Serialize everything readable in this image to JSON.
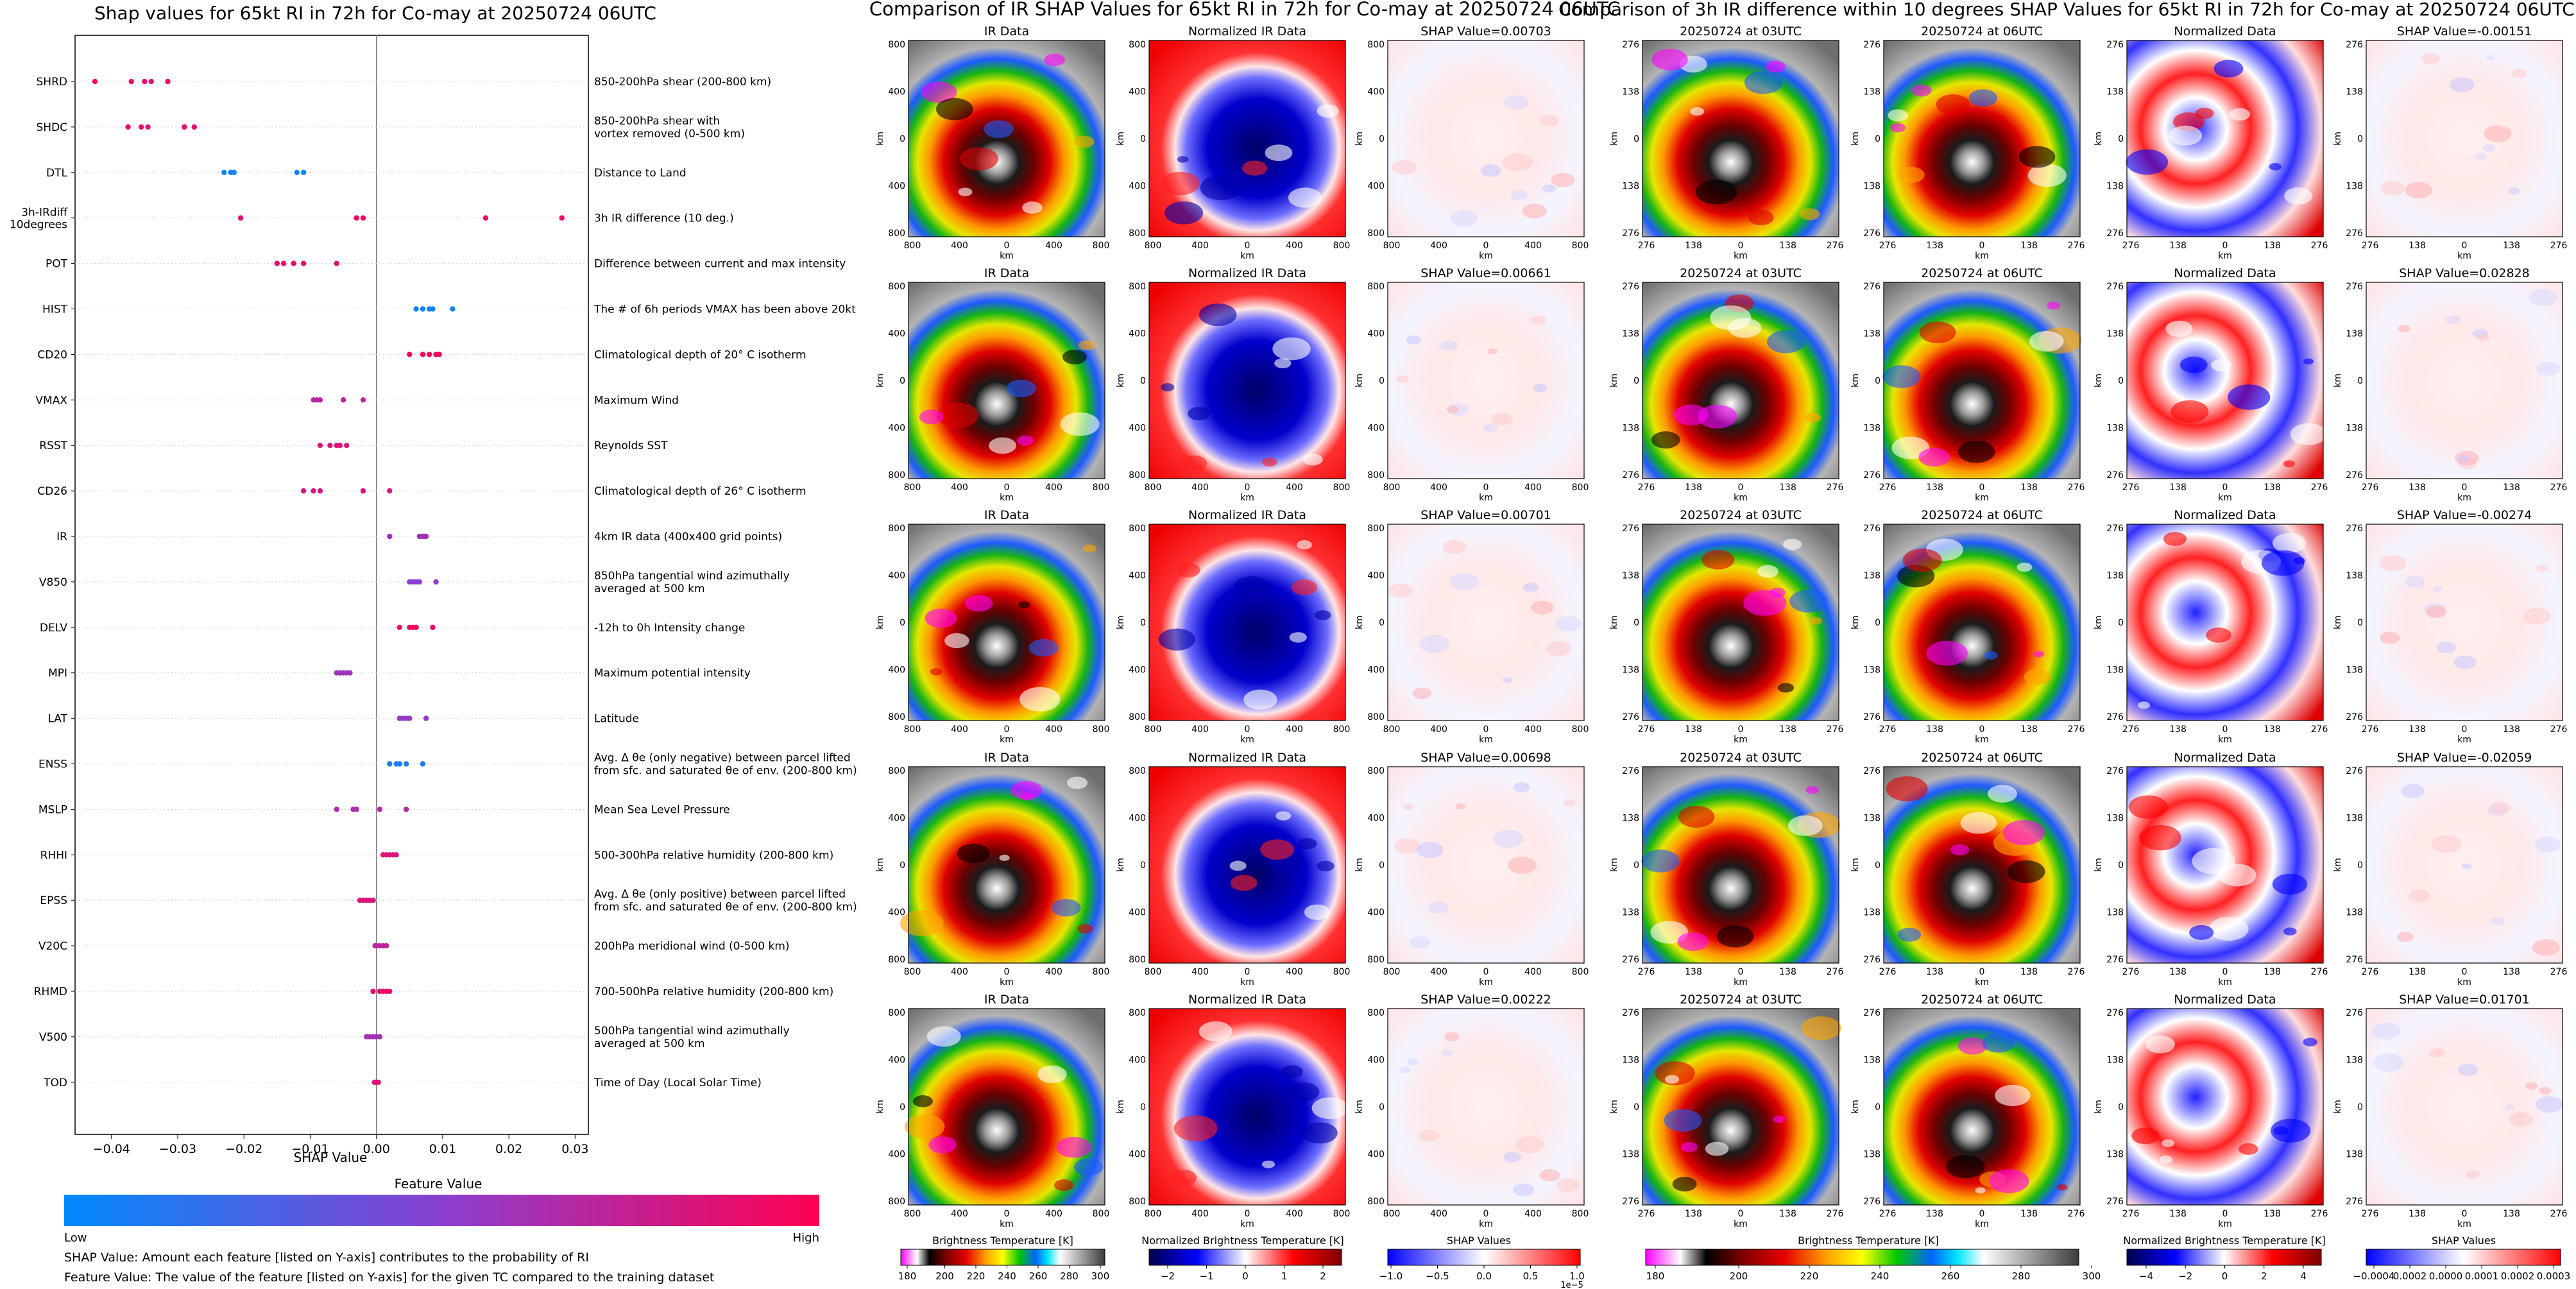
{
  "summary_panel": {
    "title": "Shap values for 65kt RI in 72h for Co-may at 20250724 06UTC",
    "xlabel": "SHAP Value",
    "x_ticks": [
      "−0.04",
      "−0.03",
      "−0.02",
      "−0.01",
      "0.00",
      "0.01",
      "0.02",
      "0.03"
    ],
    "colorbar_title": "Feature Value",
    "colorbar_low": "Low",
    "colorbar_high": "High",
    "footnote_1": "SHAP Value: Amount each feature [listed on Y-axis] contributes to the probability of RI",
    "footnote_2": "Feature Value: The value of the feature [listed on Y-axis] for the given TC compared to the training dataset"
  },
  "ir_section": {
    "title": "Comparison of IR SHAP Values for 65kt RI in 72h for Co-may at 20250724 06UTC",
    "col_titles": [
      "IR Data",
      "Normalized IR Data"
    ],
    "shap_titles": [
      "SHAP Value=0.00703",
      "SHAP Value=0.00661",
      "SHAP Value=0.00701",
      "SHAP Value=0.00698",
      "SHAP Value=0.00222"
    ],
    "axis_label": "km",
    "y_ticks": [
      "800",
      "400",
      "0",
      "400",
      "800"
    ],
    "x_ticks": [
      "800",
      "400",
      "0",
      "400",
      "800"
    ],
    "cbar_labels": [
      "Brightness Temperature [K]",
      "Normalized Brightness Temperature [K]",
      "SHAP Values"
    ],
    "cbar1_ticks": [
      "180",
      "200",
      "220",
      "240",
      "260",
      "280",
      "300"
    ],
    "cbar2_ticks": [
      "−2",
      "−1",
      "0",
      "1",
      "2"
    ],
    "cbar3_ticks": [
      "−1.0",
      "−0.5",
      "0.0",
      "0.5",
      "1.0"
    ],
    "cbar3_exp": "1e−5"
  },
  "diff_section": {
    "title": "Comparison of 3h IR difference within 10 degrees SHAP Values for 65kt RI in 72h for Co-may at 20250724 06UTC",
    "col_titles": [
      "20250724 at 03UTC",
      "20250724 at 06UTC",
      "Normalized Data"
    ],
    "shap_titles": [
      "SHAP Value=-0.00151",
      "SHAP Value=0.02828",
      "SHAP Value=-0.00274",
      "SHAP Value=-0.02059",
      "SHAP Value=0.01701"
    ],
    "axis_label": "km",
    "y_ticks": [
      "276",
      "138",
      "0",
      "138",
      "276"
    ],
    "x_ticks": [
      "276",
      "138",
      "0",
      "138",
      "276"
    ],
    "cbar_labels": [
      "Brightness Temperature [K]",
      "Normalized Brightness Temperature [K]",
      "SHAP Values"
    ],
    "cbar1_ticks": [
      "180",
      "200",
      "220",
      "240",
      "260",
      "280",
      "300"
    ],
    "cbar2_ticks": [
      "−4",
      "−2",
      "0",
      "2",
      "4"
    ],
    "cbar3_ticks": [
      "−0.0004",
      "0.0002",
      "0.0000",
      "0.0001",
      "0.0002",
      "0.0003"
    ]
  },
  "colors": {
    "feature_low": "#008bfb",
    "feature_high": "#ff0052",
    "text": "#111111"
  },
  "chart_data": [
    {
      "type": "scatter",
      "title": "Shap values for 65kt RI in 72h for Co-may at 20250724 06UTC",
      "xlabel": "SHAP Value",
      "xlim": [
        -0.0455,
        0.032
      ],
      "grid": false,
      "features": [
        {
          "name": "SHRD",
          "desc": [
            "850-200hPa shear (200-800 km)"
          ],
          "points": [
            [
              -0.0425,
              0.95
            ],
            [
              -0.037,
              0.9
            ],
            [
              -0.035,
              0.9
            ],
            [
              -0.034,
              0.85
            ],
            [
              -0.0315,
              0.9
            ]
          ]
        },
        {
          "name": "SHDC",
          "desc": [
            "850-200hPa shear with",
            "vortex removed (0-500 km)"
          ],
          "points": [
            [
              -0.0375,
              0.9
            ],
            [
              -0.0355,
              0.85
            ],
            [
              -0.0345,
              0.85
            ],
            [
              -0.029,
              0.9
            ],
            [
              -0.0275,
              0.9
            ]
          ]
        },
        {
          "name": "DTL",
          "desc": [
            "Distance to Land"
          ],
          "points": [
            [
              -0.023,
              0.05
            ],
            [
              -0.022,
              0.05
            ],
            [
              -0.0215,
              0.05
            ],
            [
              -0.012,
              0.05
            ],
            [
              -0.011,
              0.05
            ]
          ]
        },
        {
          "name": "3h-IRdiff 10degrees",
          "desc": [
            "3h IR difference (10 deg.)"
          ],
          "points": [
            [
              -0.0205,
              0.9
            ],
            [
              -0.003,
              0.95
            ],
            [
              -0.002,
              0.95
            ],
            [
              0.0165,
              0.95
            ],
            [
              0.028,
              0.95
            ]
          ]
        },
        {
          "name": "POT",
          "desc": [
            "Difference between current and max intensity"
          ],
          "points": [
            [
              -0.015,
              0.9
            ],
            [
              -0.014,
              0.9
            ],
            [
              -0.0125,
              0.9
            ],
            [
              -0.011,
              0.9
            ],
            [
              -0.006,
              0.9
            ]
          ]
        },
        {
          "name": "HIST",
          "desc": [
            "The # of 6h periods VMAX has been above 20kt"
          ],
          "points": [
            [
              0.006,
              0.05
            ],
            [
              0.007,
              0.05
            ],
            [
              0.008,
              0.05
            ],
            [
              0.0085,
              0.05
            ],
            [
              0.0115,
              0.05
            ]
          ]
        },
        {
          "name": "CD20",
          "desc": [
            "Climatological depth of 20° C isotherm"
          ],
          "points": [
            [
              0.005,
              0.95
            ],
            [
              0.007,
              0.95
            ],
            [
              0.008,
              0.95
            ],
            [
              0.009,
              0.95
            ],
            [
              0.0095,
              0.95
            ]
          ]
        },
        {
          "name": "VMAX",
          "desc": [
            "Maximum Wind"
          ],
          "points": [
            [
              -0.0095,
              0.7
            ],
            [
              -0.009,
              0.7
            ],
            [
              -0.0085,
              0.7
            ],
            [
              -0.005,
              0.7
            ],
            [
              -0.002,
              0.7
            ]
          ]
        },
        {
          "name": "RSST",
          "desc": [
            "Reynolds SST"
          ],
          "points": [
            [
              -0.0085,
              0.85
            ],
            [
              -0.007,
              0.85
            ],
            [
              -0.006,
              0.85
            ],
            [
              -0.0055,
              0.85
            ],
            [
              -0.0045,
              0.85
            ]
          ]
        },
        {
          "name": "CD26",
          "desc": [
            "Climatological depth of 26° C isotherm"
          ],
          "points": [
            [
              -0.011,
              0.8
            ],
            [
              -0.0095,
              0.8
            ],
            [
              -0.0085,
              0.8
            ],
            [
              -0.002,
              0.8
            ],
            [
              0.002,
              0.8
            ]
          ]
        },
        {
          "name": "IR",
          "desc": [
            "4km IR data (400x400 grid points)"
          ],
          "points": [
            [
              0.002,
              0.6
            ],
            [
              0.0065,
              0.6
            ],
            [
              0.007,
              0.6
            ],
            [
              0.0072,
              0.6
            ],
            [
              0.0075,
              0.6
            ]
          ]
        },
        {
          "name": "V850",
          "desc": [
            "850hPa tangential wind azimuthally",
            "averaged at 500 km"
          ],
          "points": [
            [
              0.005,
              0.5
            ],
            [
              0.0055,
              0.5
            ],
            [
              0.006,
              0.5
            ],
            [
              0.0065,
              0.5
            ],
            [
              0.009,
              0.5
            ]
          ]
        },
        {
          "name": "DELV",
          "desc": [
            "-12h to 0h Intensity change"
          ],
          "points": [
            [
              0.0035,
              0.95
            ],
            [
              0.005,
              0.95
            ],
            [
              0.0055,
              0.95
            ],
            [
              0.006,
              0.95
            ],
            [
              0.0085,
              0.95
            ]
          ]
        },
        {
          "name": "MPI",
          "desc": [
            "Maximum potential intensity"
          ],
          "points": [
            [
              -0.006,
              0.6
            ],
            [
              -0.0055,
              0.6
            ],
            [
              -0.005,
              0.6
            ],
            [
              -0.0045,
              0.6
            ],
            [
              -0.004,
              0.6
            ]
          ]
        },
        {
          "name": "LAT",
          "desc": [
            "Latitude"
          ],
          "points": [
            [
              0.0035,
              0.55
            ],
            [
              0.004,
              0.55
            ],
            [
              0.0045,
              0.55
            ],
            [
              0.005,
              0.55
            ],
            [
              0.0075,
              0.55
            ]
          ]
        },
        {
          "name": "ENSS",
          "desc": [
            "Avg. Δ θe (only negative) between parcel lifted",
            "from sfc. and saturated θe of env. (200-800 km)"
          ],
          "points": [
            [
              0.002,
              0.1
            ],
            [
              0.003,
              0.1
            ],
            [
              0.0035,
              0.1
            ],
            [
              0.0045,
              0.1
            ],
            [
              0.007,
              0.1
            ]
          ]
        },
        {
          "name": "MSLP",
          "desc": [
            "Mean Sea Level Pressure"
          ],
          "points": [
            [
              -0.006,
              0.65
            ],
            [
              -0.0035,
              0.65
            ],
            [
              -0.003,
              0.65
            ],
            [
              0.0005,
              0.65
            ],
            [
              0.0045,
              0.65
            ]
          ]
        },
        {
          "name": "RHHI",
          "desc": [
            "500-300hPa relative humidity (200-800 km)"
          ],
          "points": [
            [
              0.001,
              0.85
            ],
            [
              0.0015,
              0.85
            ],
            [
              0.002,
              0.85
            ],
            [
              0.0025,
              0.85
            ],
            [
              0.003,
              0.85
            ]
          ]
        },
        {
          "name": "EPSS",
          "desc": [
            "Avg. Δ θe (only positive) between parcel lifted",
            "from sfc. and saturated θe of env. (200-800 km)"
          ],
          "points": [
            [
              -0.0025,
              0.85
            ],
            [
              -0.002,
              0.85
            ],
            [
              -0.0015,
              0.85
            ],
            [
              -0.001,
              0.85
            ],
            [
              -0.0005,
              0.85
            ]
          ]
        },
        {
          "name": "V20C",
          "desc": [
            "200hPa meridional wind (0-500 km)"
          ],
          "points": [
            [
              -0.0002,
              0.7
            ],
            [
              0.0,
              0.7
            ],
            [
              0.0005,
              0.7
            ],
            [
              0.001,
              0.7
            ],
            [
              0.0015,
              0.7
            ]
          ]
        },
        {
          "name": "RHMD",
          "desc": [
            "700-500hPa relative humidity (200-800 km)"
          ],
          "points": [
            [
              -0.0005,
              0.9
            ],
            [
              0.0005,
              0.9
            ],
            [
              0.001,
              0.9
            ],
            [
              0.0015,
              0.9
            ],
            [
              0.002,
              0.9
            ]
          ]
        },
        {
          "name": "V500",
          "desc": [
            "500hPa tangential wind azimuthally",
            "averaged at 500 km"
          ],
          "points": [
            [
              -0.0015,
              0.6
            ],
            [
              -0.001,
              0.6
            ],
            [
              -0.0005,
              0.6
            ],
            [
              0.0,
              0.6
            ],
            [
              0.0005,
              0.6
            ]
          ]
        },
        {
          "name": "TOD",
          "desc": [
            "Time of Day (Local Solar Time)"
          ],
          "points": [
            [
              -0.0003,
              0.85
            ],
            [
              0.0,
              0.85
            ],
            [
              0.0003,
              0.85
            ]
          ]
        }
      ]
    },
    {
      "type": "heatmap",
      "title": "Comparison of IR SHAP Values for 65kt RI in 72h for Co-may at 20250724 06UTC",
      "panels_per_row": [
        "IR Data",
        "Normalized IR Data",
        "SHAP"
      ],
      "shap_values": [
        0.00703,
        0.00661,
        0.00701,
        0.00698,
        0.00222
      ]
    },
    {
      "type": "heatmap",
      "title": "Comparison of 3h IR difference within 10 degrees SHAP Values for 65kt RI in 72h for Co-may at 20250724 06UTC",
      "panels_per_row": [
        "20250724 at 03UTC",
        "20250724 at 06UTC",
        "Normalized Data",
        "SHAP"
      ],
      "shap_values": [
        -0.00151,
        0.02828,
        -0.00274,
        -0.02059,
        0.01701
      ]
    }
  ]
}
